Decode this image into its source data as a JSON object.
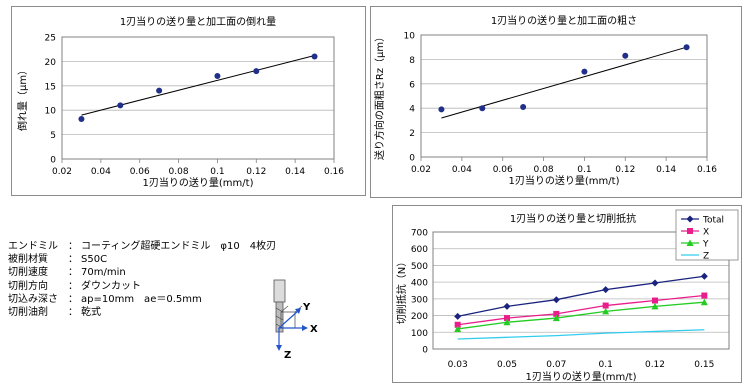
{
  "chart_data": [
    {
      "type": "scatter",
      "title": "1刃当りの送り量と加工面の倒れ量",
      "xlabel": "1刃当りの送り量(mm/t)",
      "ylabel": "倒れ量（μm）",
      "xlim": [
        0.02,
        0.16
      ],
      "ylim": [
        0,
        25
      ],
      "xticks": [
        "0.02",
        "0.04",
        "0.06",
        "0.08",
        "0.1",
        "0.12",
        "0.14",
        "0.16"
      ],
      "yticks": [
        "0",
        "5",
        "10",
        "15",
        "20",
        "25"
      ],
      "x": [
        0.03,
        0.05,
        0.07,
        0.1,
        0.12,
        0.15
      ],
      "y": [
        8.2,
        11.0,
        14.0,
        17.0,
        18.0,
        21.0
      ],
      "trendline": {
        "x": [
          0.03,
          0.15
        ],
        "y": [
          9.0,
          21.2
        ]
      },
      "grid": "horizontal",
      "marker_color": "#1f2f8a"
    },
    {
      "type": "scatter",
      "title": "1刃当りの送り量と加工面の粗さ",
      "xlabel": "1刃当りの送り量(mm/t)",
      "ylabel": "送り方向の面粗さRz（μm）",
      "xlim": [
        0.02,
        0.16
      ],
      "ylim": [
        0,
        10
      ],
      "xticks": [
        "0.02",
        "0.04",
        "0.06",
        "0.08",
        "0.1",
        "0.12",
        "0.14",
        "0.16"
      ],
      "yticks": [
        "0",
        "2",
        "4",
        "6",
        "8",
        "10"
      ],
      "x": [
        0.03,
        0.05,
        0.07,
        0.1,
        0.12,
        0.15
      ],
      "y": [
        3.9,
        4.0,
        4.1,
        7.0,
        8.3,
        9.0
      ],
      "trendline": {
        "x": [
          0.03,
          0.15
        ],
        "y": [
          3.2,
          9.0
        ]
      },
      "grid": "horizontal",
      "marker_color": "#1f2f8a"
    },
    {
      "type": "line",
      "title": "1刃当りの送り量と切削抵抗",
      "xlabel": "1刃当りの送り量(mm/t)",
      "ylabel": "切削抵抗（N）",
      "categories": [
        "0.03",
        "0.05",
        "0.07",
        "0.1",
        "0.12",
        "0.15"
      ],
      "ylim": [
        0,
        700
      ],
      "yticks": [
        "0",
        "100",
        "200",
        "300",
        "400",
        "500",
        "600",
        "700"
      ],
      "series": [
        {
          "name": "Total",
          "values": [
            195,
            255,
            295,
            355,
            395,
            435
          ],
          "color": "#1a237e",
          "marker": "diamond"
        },
        {
          "name": "X",
          "values": [
            145,
            185,
            210,
            260,
            290,
            320
          ],
          "color": "#e91e8c",
          "marker": "square"
        },
        {
          "name": "Y",
          "values": [
            120,
            160,
            185,
            225,
            255,
            280
          ],
          "color": "#22cc22",
          "marker": "triangle"
        },
        {
          "name": "Z",
          "values": [
            60,
            70,
            80,
            95,
            105,
            115
          ],
          "color": "#33ccee",
          "marker": "none"
        }
      ],
      "grid": "horizontal",
      "legend": "top-right"
    }
  ],
  "specs": [
    {
      "label": "エンドミル",
      "sep": "：",
      "value": "コーティング超硬エンドミル　φ10　4枚刃"
    },
    {
      "label": "被削材質",
      "sep": "：",
      "value": "S50C"
    },
    {
      "label": "切削速度",
      "sep": "：",
      "value": "70m/min"
    },
    {
      "label": "切削方向",
      "sep": "：",
      "value": "ダウンカット"
    },
    {
      "label": "切込み深さ",
      "sep": "：",
      "value": "ap=10mm　ae＝0.5mm"
    },
    {
      "label": "切削油剤",
      "sep": "：",
      "value": "乾式"
    }
  ],
  "axes_diagram": {
    "x": "X",
    "y": "Y",
    "z": "Z"
  }
}
